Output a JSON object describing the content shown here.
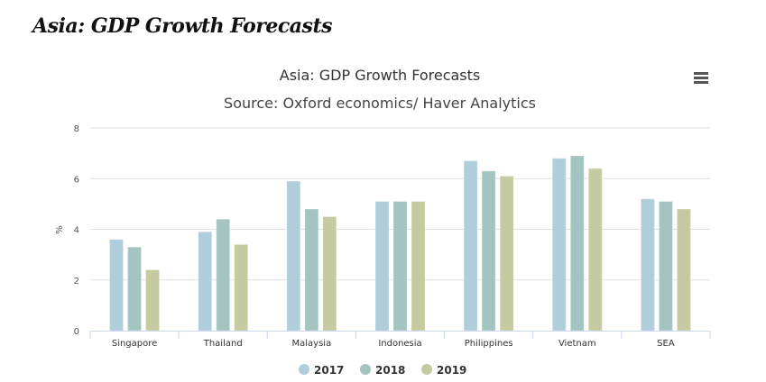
{
  "page": {
    "title": "Asia: GDP Growth Forecasts"
  },
  "menu_icon": "hamburger-menu-icon",
  "chart_data": {
    "type": "bar",
    "title": "Asia: GDP Growth Forecasts",
    "subtitle": "Source: Oxford economics/ Haver Analytics",
    "xlabel": "",
    "ylabel": "%",
    "ylim": [
      0,
      8
    ],
    "yticks": [
      0,
      2,
      4,
      6,
      8
    ],
    "grid": true,
    "legend_position": "bottom-center",
    "categories": [
      "Singapore",
      "Thailand",
      "Malaysia",
      "Indonesia",
      "Philippines",
      "Vietnam",
      "SEA"
    ],
    "series": [
      {
        "name": "2017",
        "color": "#b0cddc",
        "values": [
          3.6,
          3.9,
          5.9,
          5.1,
          6.7,
          6.8,
          5.2
        ]
      },
      {
        "name": "2018",
        "color": "#a3c4c0",
        "values": [
          3.3,
          4.4,
          4.8,
          5.1,
          6.3,
          6.9,
          5.1
        ]
      },
      {
        "name": "2019",
        "color": "#c5caa0",
        "values": [
          2.4,
          3.4,
          4.5,
          5.1,
          6.1,
          6.4,
          4.8
        ]
      }
    ]
  }
}
